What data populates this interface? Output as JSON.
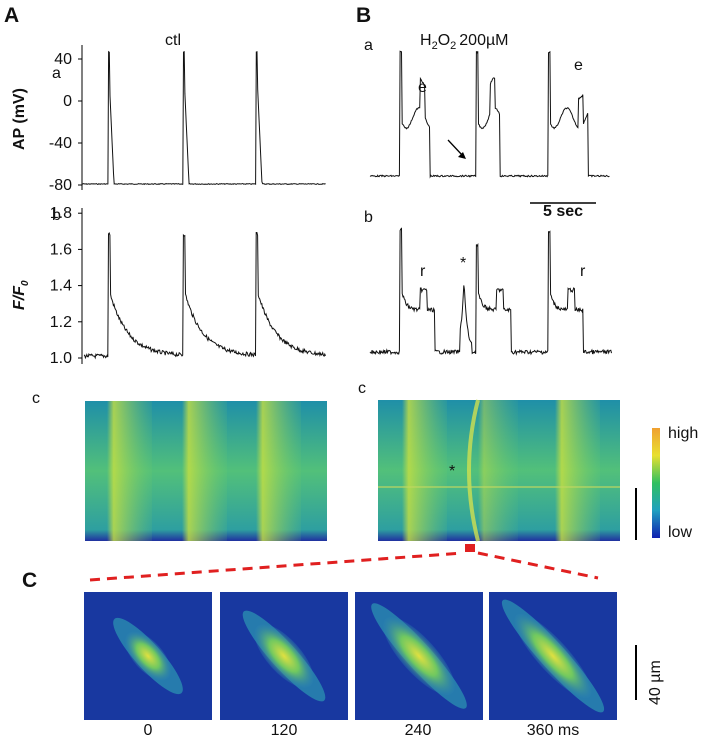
{
  "panels": {
    "A": {
      "label": "A",
      "a": {
        "label": "a",
        "title": "ctl",
        "ylabel": "AP (mV)",
        "yticks": [
          40,
          0,
          -40,
          -80
        ]
      },
      "b": {
        "label": "b",
        "ylabel": [
          "F/F",
          "0"
        ],
        "yticks": [
          1.8,
          1.6,
          1.4,
          1.2,
          {
            "value": 1,
            "label": "1.0"
          }
        ]
      },
      "c": {
        "label": "c"
      }
    },
    "B": {
      "label": "B",
      "a": {
        "label": "a",
        "title": [
          "H",
          "2",
          "O",
          "2",
          "200µM"
        ],
        "annotations": [
          "e",
          "e"
        ],
        "scale_bar": "5 sec"
      },
      "b": {
        "label": "b",
        "annotations": [
          "r",
          "*",
          "r"
        ]
      },
      "c": {
        "label": "c",
        "colorbar": [
          "high",
          "low"
        ]
      }
    },
    "C": {
      "label": "C",
      "scale_bar": "40 µm",
      "times": [
        "0",
        "120",
        "240",
        "360 ms"
      ]
    }
  }
}
